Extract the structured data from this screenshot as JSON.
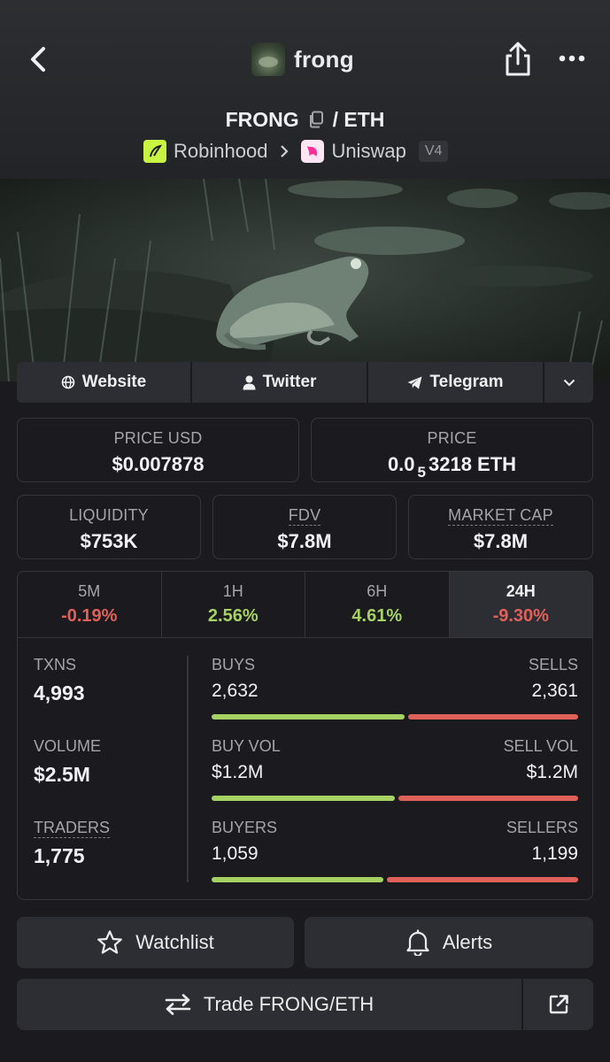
{
  "header": {
    "token_name": "frong",
    "pair_base": "FRONG",
    "pair_sep": " / ",
    "pair_quote": "ETH",
    "chain_label": "Robinhood",
    "dex_label": "Uniswap",
    "dex_version": "V4"
  },
  "links": [
    {
      "label": "Website",
      "icon": "globe-icon"
    },
    {
      "label": "Twitter",
      "icon": "user-icon"
    },
    {
      "label": "Telegram",
      "icon": "telegram-icon"
    },
    {
      "label": "",
      "icon": "chevron-down-icon"
    }
  ],
  "metrics": {
    "price_usd": {
      "label": "PRICE USD",
      "value": "$0.007878"
    },
    "price": {
      "label": "PRICE",
      "value_prefix": "0.0",
      "value_sub": "5",
      "value_suffix": "3218 ETH"
    },
    "liquidity": {
      "label": "LIQUIDITY",
      "value": "$753K"
    },
    "fdv": {
      "label": "FDV",
      "value": "$7.8M"
    },
    "market_cap": {
      "label": "MARKET CAP",
      "value": "$7.8M"
    }
  },
  "timeframes": [
    {
      "label": "5M",
      "change": "-0.19%",
      "trend": "neg"
    },
    {
      "label": "1H",
      "change": "2.56%",
      "trend": "pos"
    },
    {
      "label": "6H",
      "change": "4.61%",
      "trend": "pos"
    },
    {
      "label": "24H",
      "change": "-9.30%",
      "trend": "neg",
      "active": true
    }
  ],
  "stats": {
    "txns": {
      "label": "TXNS",
      "value": "4,993"
    },
    "volume": {
      "label": "VOLUME",
      "value": "$2.5M"
    },
    "traders": {
      "label": "TRADERS",
      "value": "1,775"
    },
    "buys": {
      "label": "BUYS",
      "value": "2,632",
      "right_label": "SELLS",
      "right_value": "2,361",
      "buy_fraction": 0.527
    },
    "buy_vol": {
      "label": "BUY VOL",
      "value": "$1.2M",
      "right_label": "SELL VOL",
      "right_value": "$1.2M",
      "buy_fraction": 0.5
    },
    "buyers": {
      "label": "BUYERS",
      "value": "1,059",
      "right_label": "SELLERS",
      "right_value": "1,199",
      "buy_fraction": 0.469
    }
  },
  "actions": {
    "watchlist": "Watchlist",
    "alerts": "Alerts",
    "trade": "Trade FRONG/ETH"
  },
  "colors": {
    "positive": "#a6d264",
    "negative": "#e0605a",
    "background": "#1b1b1f",
    "surface": "#2d2e33"
  }
}
